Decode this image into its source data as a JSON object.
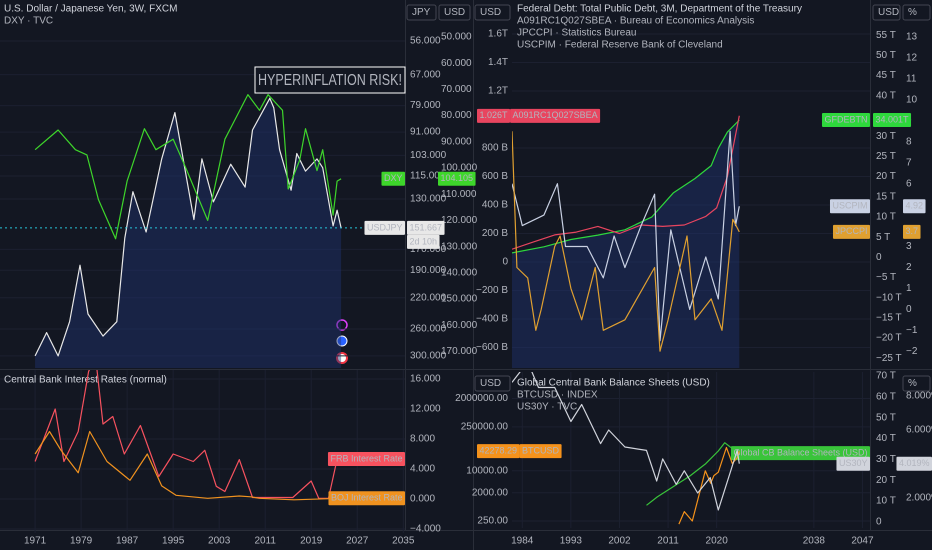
{
  "chart_data": [
    {
      "type": "line",
      "title": "U.S. Dollar / Japanese Yen, 3W, FXCM",
      "subtitles": [
        "DXY · TVC"
      ],
      "annotation": "HYPERINFLATION RISK!",
      "xlim": [
        1964.9,
        2035.3
      ],
      "ylabel": "JPY",
      "ylim": [
        45,
        320
      ],
      "y_log": true,
      "y_inverted": true,
      "yticks": [
        {
          "value": 56,
          "label": "56.000"
        },
        {
          "value": 67,
          "label": "67.000"
        },
        {
          "value": 79,
          "label": "79.000"
        },
        {
          "value": 91,
          "label": "91.000"
        },
        {
          "value": 103,
          "label": "103.000"
        },
        {
          "value": 115,
          "label": "115.000"
        },
        {
          "value": 130,
          "label": "130.000"
        },
        {
          "value": 170,
          "label": "170.000"
        },
        {
          "value": 190,
          "label": "190.000"
        },
        {
          "value": 220,
          "label": "220.000"
        },
        {
          "value": 260,
          "label": "260.000"
        },
        {
          "value": 300,
          "label": "300.000"
        }
      ],
      "y2label": "USD",
      "y2lim": [
        35.9,
        176.3
      ],
      "y2_inverted": true,
      "y2ticks": [
        {
          "value": 50,
          "label": "50.000"
        },
        {
          "value": 60,
          "label": "60.000"
        },
        {
          "value": 70,
          "label": "70.000"
        },
        {
          "value": 80,
          "label": "80.000"
        },
        {
          "value": 90,
          "label": "90.000"
        },
        {
          "value": 100,
          "label": "100.000"
        },
        {
          "value": 110,
          "label": "110.000"
        },
        {
          "value": 120,
          "label": "120.000"
        },
        {
          "value": 130,
          "label": "130.000"
        },
        {
          "value": 140,
          "label": "140.000"
        },
        {
          "value": 150,
          "label": "150.000"
        },
        {
          "value": 160,
          "label": "160.000"
        },
        {
          "value": 170,
          "label": "170.000"
        }
      ],
      "grid": true,
      "series": [
        {
          "name": "USDJPY",
          "color": "#e8e8e8",
          "area": true,
          "value_tag": true,
          "countdown": "2d 10h",
          "x": [
            1971,
            1973,
            1975,
            1977,
            1978.8,
            1980.2,
            1982.8,
            1985.2,
            1986.6,
            1988,
            1990.3,
            1993,
            1995.3,
            1998.6,
            2000,
            2002,
            2005,
            2007.5,
            2008.8,
            2011.8,
            2012.5,
            2013.5,
            2015.5,
            2016.5,
            2018,
            2020,
            2021,
            2022.8,
            2023.5,
            2024.2
          ],
          "values": [
            300,
            265,
            300,
            250,
            185,
            240,
            270,
            250,
            160,
            125,
            155,
            105,
            82,
            145,
            105,
            132,
            108,
            122,
            90,
            76,
            80,
            100,
            124,
            102,
            112,
            105,
            110,
            150,
            138,
            151.667
          ]
        },
        {
          "name": "DXY",
          "color": "#3ed62b",
          "axis": "y2",
          "value_tag": true,
          "x": [
            1971,
            1975,
            1978,
            1980,
            1982,
            1985,
            1987,
            1990,
            1992,
            1995,
            1997,
            2001,
            2004,
            2008,
            2010,
            2011.5,
            2014,
            2015,
            2017,
            2018,
            2020,
            2021,
            2022.8,
            2023.5,
            2024.2
          ],
          "values": [
            93,
            85.5,
            93,
            95,
            112,
            127,
            105,
            85,
            93,
            89,
            99,
            120,
            89,
            72,
            78,
            72,
            78,
            108,
            97,
            85,
            101,
            93,
            118,
            105,
            104.105
          ]
        }
      ]
    },
    {
      "type": "line",
      "title": "Central Bank Interest Rates (normal)",
      "xlim": [
        1964.9,
        2035.3
      ],
      "xticks": [
        1971,
        1979,
        1987,
        1995,
        2003,
        2011,
        2019,
        2027,
        2035
      ],
      "ylim": [
        -4.53,
        17.2
      ],
      "yticks": [
        {
          "value": 16,
          "label": "16.000"
        },
        {
          "value": 12,
          "label": "12.000"
        },
        {
          "value": 8,
          "label": "8.000"
        },
        {
          "value": 4,
          "label": "4.000"
        },
        {
          "value": 0,
          "label": "0.000"
        },
        {
          "value": -4,
          "label": "−4.000"
        }
      ],
      "grid": true,
      "series": [
        {
          "name": "FRB Interest Rate",
          "color": "#f7525f",
          "value_tag": false,
          "x": [
            1971,
            1973.5,
            1974.5,
            1976,
            1978.5,
            1980.3,
            1981.5,
            1982.8,
            1984.5,
            1986.5,
            1989.3,
            1992.5,
            1995,
            1998.5,
            2000.5,
            2002.5,
            2004,
            2006.5,
            2008.8,
            2015.8,
            2019,
            2020.3,
            2022,
            2023.5,
            2024.2
          ],
          "values": [
            5,
            10,
            12,
            5,
            9,
            17,
            19,
            10,
            11,
            6,
            9.8,
            3,
            6,
            5,
            6.5,
            1.7,
            1,
            5.25,
            0.2,
            0.2,
            2.4,
            0.1,
            0.1,
            5.3,
            5.33
          ]
        },
        {
          "name": "BOJ Interest Rate",
          "color": "#f0921f",
          "value_tag": false,
          "x": [
            1971,
            1973.5,
            1975.5,
            1978.5,
            1980.5,
            1983.5,
            1987.5,
            1990.5,
            1993,
            1995.5,
            2001,
            2006.5,
            2008.5,
            2010,
            2016,
            2024.2
          ],
          "values": [
            6,
            9,
            6.5,
            3.5,
            9,
            5,
            2.5,
            6,
            1.75,
            0.5,
            0.1,
            0.4,
            0.3,
            0.1,
            -0.1,
            0.1
          ]
        }
      ]
    },
    {
      "type": "line",
      "title": "Federal Debt: Total Public Debt, 3M, Department of the Treasury",
      "subtitles": [
        "A091RC1Q027SBEA · Bureau of Economics Analysis",
        "JPCCPI · Statistics Bureau",
        "USCPIM · Federal Reserve Bank of Cleveland"
      ],
      "xlim": [
        1982.1,
        2048.4
      ],
      "ylabel": "USD",
      "ylim": [
        -744000000000,
        1839000000000
      ],
      "yticks": [
        {
          "value": 1600000000000,
          "label": "1.6T"
        },
        {
          "value": 1400000000000,
          "label": "1.4T"
        },
        {
          "value": 1200000000000,
          "label": "1.2T"
        },
        {
          "value": 800000000000,
          "label": "800 B"
        },
        {
          "value": 600000000000,
          "label": "600 B"
        },
        {
          "value": 400000000000,
          "label": "400 B"
        },
        {
          "value": 200000000000,
          "label": "200 B"
        },
        0,
        {
          "value": -200000000000,
          "label": "−200 B"
        },
        {
          "value": -400000000000,
          "label": "−400 B"
        },
        {
          "value": -600000000000,
          "label": "−600 B"
        }
      ],
      "y2label": "USD",
      "y2lim": [
        -27400000000000,
        63700000000000
      ],
      "y2ticks": [
        {
          "value": 55000000000000,
          "label": "55 T"
        },
        {
          "value": 50000000000000,
          "label": "50 T"
        },
        {
          "value": 45000000000000,
          "label": "45 T"
        },
        {
          "value": 40000000000000,
          "label": "40 T"
        },
        {
          "value": 30000000000000,
          "label": "30 T"
        },
        {
          "value": 25000000000000,
          "label": "25 T"
        },
        {
          "value": 20000000000000,
          "label": "20 T"
        },
        {
          "value": 15000000000000,
          "label": "15 T"
        },
        {
          "value": 10000000000000,
          "label": "10 T"
        },
        {
          "value": 5000000000000,
          "label": "5 T"
        },
        0,
        {
          "value": -5000000000000,
          "label": "−5 T"
        },
        {
          "value": -10000000000000,
          "label": "−10 T"
        },
        {
          "value": -15000000000000,
          "label": "−15 T"
        },
        {
          "value": -20000000000000,
          "label": "−20 T"
        },
        {
          "value": -25000000000000,
          "label": "−25 T"
        }
      ],
      "y3label": "%",
      "y3lim": [
        -2.8,
        14.77
      ],
      "y3ticks": [
        13,
        12,
        11,
        10,
        9,
        8,
        7,
        6,
        3,
        2,
        1,
        0,
        {
          "value": -1,
          "label": "−1"
        },
        {
          "value": -2,
          "label": "−2"
        }
      ],
      "grid": true,
      "series": [
        {
          "name": "GFDEBTN",
          "color": "#2ed83c",
          "axis": "y2",
          "area": true,
          "value_tag": true,
          "x": [
            1982.1,
            1988,
            1993,
            1998,
            2003,
            2008,
            2012,
            2016,
            2019,
            2020.3,
            2022,
            2024.2
          ],
          "values": [
            1100000000000,
            2600000000000,
            4400000000000,
            5500000000000,
            6800000000000,
            10000000000000,
            16000000000000,
            19500000000000,
            22700000000000,
            27000000000000,
            31000000000000,
            34001000000000
          ],
          "value_labels": [
            null,
            null,
            null,
            null,
            null,
            null,
            null,
            null,
            null,
            null,
            null,
            "34.001T"
          ]
        },
        {
          "name": "A091RC1Q027SBEA",
          "color": "#e8455f",
          "tag_side": "left",
          "value_tag": true,
          "x": [
            1982.1,
            1986,
            1990,
            1994,
            1998,
            2002,
            2006,
            2010,
            2014,
            2018,
            2020,
            2022,
            2024.2
          ],
          "values": [
            90000000000,
            140000000000,
            190000000000,
            210000000000,
            250000000000,
            200000000000,
            260000000000,
            250000000000,
            260000000000,
            320000000000,
            380000000000,
            600000000000,
            1026000000000
          ],
          "value_labels": [
            null,
            null,
            null,
            null,
            null,
            null,
            null,
            null,
            null,
            null,
            null,
            null,
            "1.026T"
          ]
        },
        {
          "name": "USCPIM",
          "color": "#c9d1e3",
          "axis": "y3",
          "value_tag": true,
          "x": [
            1982.1,
            1984,
            1988,
            1990.5,
            1992,
            1996,
            1999,
            2001,
            2003,
            2006,
            2008.5,
            2009.5,
            2011.5,
            2015,
            2018,
            2020.3,
            2022.5,
            2023.5,
            2024.2
          ],
          "values": [
            6,
            4,
            4.5,
            6,
            3,
            3,
            1.5,
            3.5,
            2,
            4,
            5.5,
            -1.5,
            3.8,
            0,
            2.5,
            0.5,
            8.5,
            4,
            4.92
          ]
        },
        {
          "name": "JPCCPI",
          "color": "#e0a030",
          "axis": "y3",
          "value_tag": true,
          "x": [
            1982.1,
            1983,
            1985,
            1986.5,
            1987.5,
            1990,
            1991,
            1993,
            1995,
            1997.5,
            1999,
            2003,
            2008.5,
            2009.5,
            2011,
            2014.5,
            2016,
            2019,
            2021,
            2023,
            2024.2
          ],
          "values": [
            8.5,
            2,
            1.5,
            -1,
            0,
            3,
            3.5,
            1,
            -0.5,
            2,
            -1,
            -0.5,
            2,
            -2,
            -0.5,
            3.5,
            -0.5,
            0.5,
            -1,
            4.3,
            3.7
          ]
        }
      ]
    },
    {
      "type": "line",
      "title": "Global Central Bank Balance Sheets (USD)",
      "subtitles": [
        "BTCUSD · INDEX",
        "US30Y · TVC"
      ],
      "xlim": [
        1982.1,
        2048.4
      ],
      "xticks": [
        1984,
        1993,
        2002,
        2011,
        2020,
        2038,
        2047
      ],
      "ylabel": "USD",
      "ylim": [
        150,
        14000000
      ],
      "y_log": true,
      "yticks": [
        {
          "value": 2000000,
          "label": "2000000.00"
        },
        {
          "value": 250000,
          "label": "250000.00"
        },
        {
          "value": 10000,
          "label": "10000.00"
        },
        {
          "value": 2000,
          "label": "2000.00"
        },
        {
          "value": 250,
          "label": "250.00"
        }
      ],
      "y2lim": [
        -2900000000000,
        71900000000000
      ],
      "y2ticks": [
        {
          "value": 70000000000000,
          "label": "70 T"
        },
        {
          "value": 60000000000000,
          "label": "60 T"
        },
        {
          "value": 50000000000000,
          "label": "50 T"
        },
        {
          "value": 40000000000000,
          "label": "40 T"
        },
        {
          "value": 30000000000000,
          "label": "30 T"
        },
        {
          "value": 20000000000000,
          "label": "20 T"
        },
        {
          "value": 10000000000000,
          "label": "10 T"
        },
        0
      ],
      "y3label": "%",
      "y3lim": [
        0.24,
        9.41
      ],
      "y3ticks": [
        {
          "value": 8,
          "label": "8.000%"
        },
        {
          "value": 6,
          "label": "6.000%"
        },
        {
          "value": 2,
          "label": "2.000%"
        }
      ],
      "grid": true,
      "series": [
        {
          "name": "Global CB Balance Sheets (USD)",
          "color": "#39c43a",
          "axis": "y2",
          "value_tag": false,
          "x": [
            2007,
            2009,
            2012,
            2015,
            2018,
            2020.3,
            2021.5,
            2022.5,
            2024.2
          ],
          "values": [
            8000000000000,
            12000000000000,
            17000000000000,
            22000000000000,
            28000000000000,
            34000000000000,
            38000000000000,
            36000000000000,
            33000000000000
          ]
        },
        {
          "name": "BTCUSD",
          "color": "#f5921b",
          "tag_side": "left",
          "value_tag": true,
          "x": [
            2013,
            2014,
            2015.5,
            2017.9,
            2018.9,
            2019.5,
            2020.3,
            2021.8,
            2022.9,
            2023.8,
            2024.2
          ],
          "values": [
            200,
            500,
            250,
            10000,
            4000,
            7000,
            9000,
            55000,
            17000,
            26000,
            42278.29
          ]
        },
        {
          "name": "US30Y",
          "color": "#d1d4dc",
          "axis": "y3",
          "value_tag": true,
          "x": [
            1982.1,
            1985,
            1987,
            1990,
            1993,
            1995,
            1998.5,
            2000,
            2003,
            2007,
            2008.9,
            2010,
            2012.5,
            2014,
            2016.5,
            2018.8,
            2020.3,
            2022.8,
            2023.8,
            2024.2
          ],
          "values": [
            8.8,
            10,
            8.5,
            8.5,
            6.5,
            7.5,
            5.2,
            6,
            5,
            4.8,
            3,
            4.3,
            2.8,
            3.6,
            2.3,
            3.2,
            1.3,
            3.8,
            4.8,
            4.019
          ],
          "value_labels": [
            null,
            null,
            null,
            null,
            null,
            null,
            null,
            null,
            null,
            null,
            null,
            null,
            null,
            null,
            null,
            null,
            null,
            null,
            null,
            "4.019%"
          ]
        }
      ]
    }
  ]
}
